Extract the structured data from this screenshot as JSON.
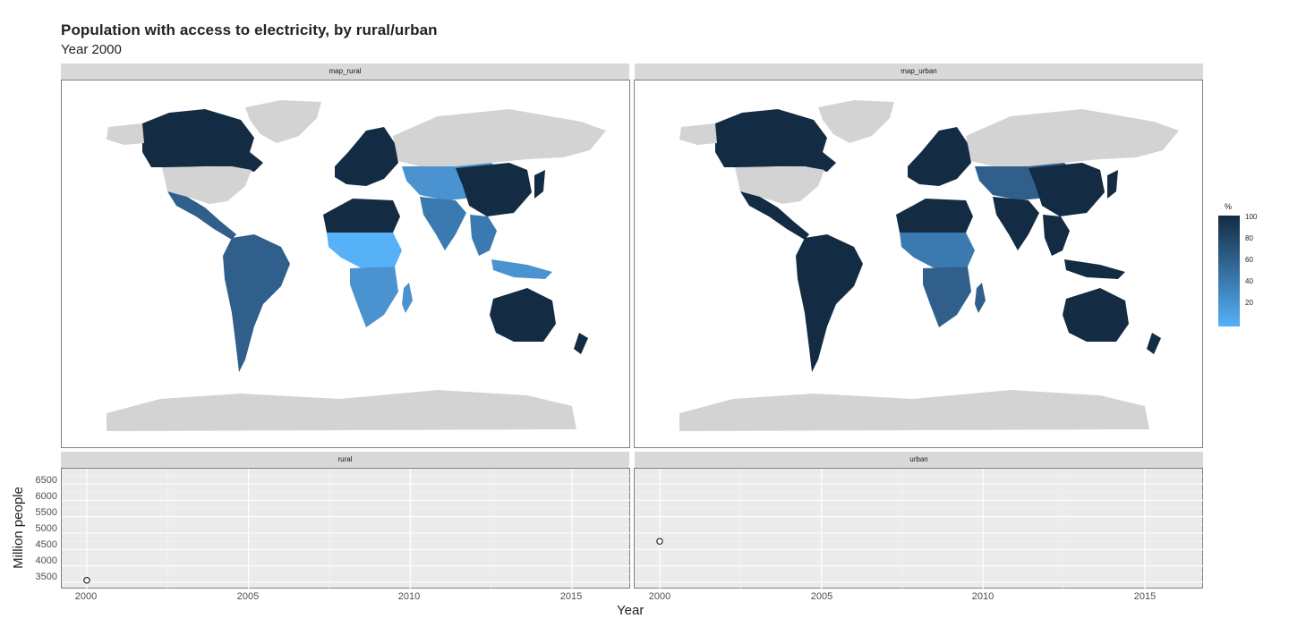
{
  "chart_data": [
    {
      "type": "map",
      "panel": "map_rural",
      "legend_title": "%",
      "legend_ticks": [
        "100",
        "80",
        "60",
        "40",
        "20"
      ],
      "color_low": "#56b1f7",
      "color_high": "#132b43",
      "missing_color": "#d3d3d3"
    },
    {
      "type": "map",
      "panel": "map_urban",
      "legend_title": "%",
      "color_low": "#56b1f7",
      "color_high": "#132b43",
      "missing_color": "#d3d3d3"
    },
    {
      "type": "scatter",
      "panel": "rural",
      "x": [
        2000
      ],
      "y": [
        3560
      ],
      "xlim": [
        1999,
        2017
      ],
      "ylim": [
        3400,
        6800
      ]
    },
    {
      "type": "scatter",
      "panel": "urban",
      "x": [
        2000
      ],
      "y": [
        4750
      ],
      "xlim": [
        1999,
        2017
      ],
      "ylim": [
        3400,
        6800
      ]
    }
  ],
  "title": "Population with access to electricity, by rural/urban",
  "subtitle": "Year 2000",
  "strips": {
    "map_rural": "map_rural",
    "map_urban": "map_urban",
    "rural": "rural",
    "urban": "urban"
  },
  "axes": {
    "ylabel": "Million people",
    "xlabel": "Year",
    "y_ticks": [
      "6500",
      "6000",
      "5500",
      "5000",
      "4500",
      "4000",
      "3500"
    ],
    "x_ticks": [
      "2000",
      "2005",
      "2010",
      "2015"
    ]
  },
  "legend": {
    "title": "%",
    "labels": [
      "100",
      "80",
      "60",
      "40",
      "20"
    ]
  }
}
